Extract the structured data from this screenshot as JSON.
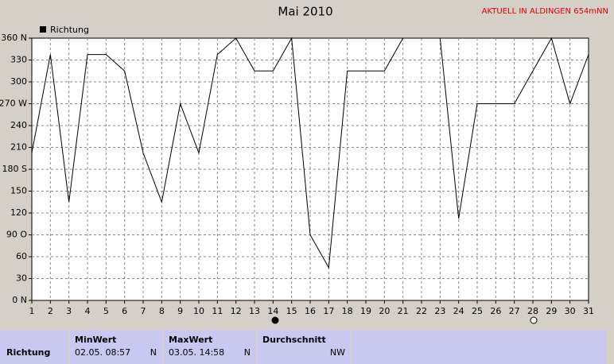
{
  "chart_data": {
    "type": "line",
    "title": "Mai 2010",
    "annotation": "AKTUELL IN ALDINGEN 654mNN",
    "x": [
      1,
      2,
      3,
      4,
      5,
      6,
      7,
      8,
      9,
      10,
      11,
      12,
      13,
      14,
      15,
      16,
      17,
      18,
      19,
      20,
      21,
      22,
      23,
      24,
      25,
      26,
      27,
      28,
      29,
      30,
      31
    ],
    "series": [
      {
        "name": "Richtung",
        "color": "#000000",
        "values": [
          202.5,
          337.5,
          135,
          337.5,
          337.5,
          315,
          202.5,
          135,
          270,
          202.5,
          337.5,
          360,
          315,
          315,
          360,
          90,
          45,
          315,
          315,
          315,
          360,
          360,
          360,
          112.5,
          270,
          270,
          270,
          315,
          360,
          270,
          337.5
        ]
      }
    ],
    "xlim": [
      1,
      31
    ],
    "xticks": [
      1,
      2,
      3,
      4,
      5,
      6,
      7,
      8,
      9,
      10,
      11,
      12,
      13,
      14,
      15,
      16,
      17,
      18,
      19,
      20,
      21,
      22,
      23,
      24,
      25,
      26,
      27,
      28,
      29,
      30,
      31
    ],
    "ylim": [
      0,
      360
    ],
    "yticks": [
      {
        "value": 0,
        "label": "0 N"
      },
      30,
      60,
      {
        "value": 90,
        "label": "90 O"
      },
      120,
      150,
      {
        "value": 180,
        "label": "180 S"
      },
      210,
      240,
      {
        "value": 270,
        "label": "270 W"
      },
      300,
      330,
      {
        "value": 360,
        "label": "360 N"
      }
    ],
    "grid": true
  },
  "summary": {
    "row_label": "Richtung",
    "columns": [
      {
        "header": "MinWert",
        "time": "02.05.  08:57",
        "value": "N"
      },
      {
        "header": "MaxWert",
        "time": "03.05.  14:58",
        "value": "N"
      },
      {
        "header": "Durchschnitt",
        "value": "NW"
      }
    ]
  }
}
